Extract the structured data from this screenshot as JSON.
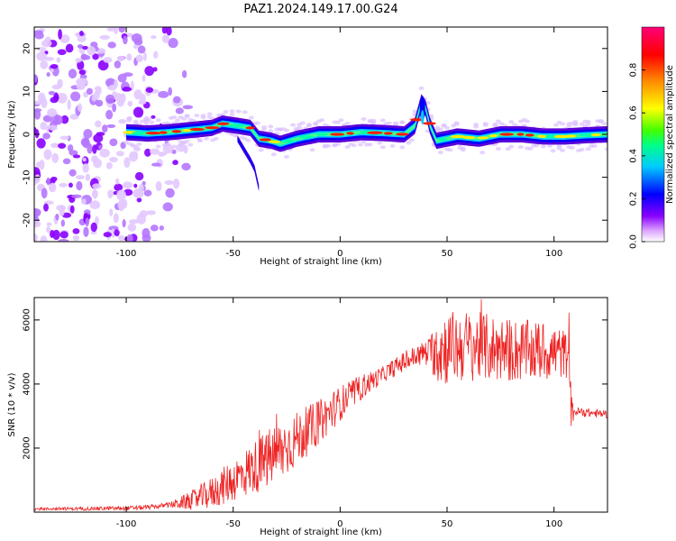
{
  "title": "PAZ1.2024.149.17.00.G24",
  "colors": {
    "snr_line": "#ee2222",
    "axis": "#000000",
    "colormap": [
      "#ffffff",
      "#cc88ff",
      "#8800ff",
      "#0000ff",
      "#00ccff",
      "#00ff88",
      "#44ff00",
      "#ffff00",
      "#ff8800",
      "#ff0000",
      "#ff0077"
    ]
  },
  "chart_data": [
    {
      "type": "heatmap",
      "name": "spectrogram",
      "xlabel": "Height of straight line (km)",
      "ylabel": "Frequency (Hz)",
      "xlim": [
        -143,
        125
      ],
      "ylim": [
        -25,
        25
      ],
      "x_ticks": [
        -100,
        -50,
        0,
        50,
        100
      ],
      "y_ticks": [
        -20,
        -10,
        0,
        10,
        20
      ],
      "colorbar": {
        "label": "Normalized spectral amplitude",
        "range": [
          0,
          1
        ],
        "ticks": [
          "0.0",
          "0.2",
          "0.4",
          "0.6",
          "0.8"
        ]
      },
      "ridge": [
        {
          "x": -100,
          "y": 0.5
        },
        {
          "x": -90,
          "y": 0.2
        },
        {
          "x": -80,
          "y": 0.5
        },
        {
          "x": -70,
          "y": 1.0
        },
        {
          "x": -60,
          "y": 1.5
        },
        {
          "x": -55,
          "y": 2.5
        },
        {
          "x": -48,
          "y": 2.0
        },
        {
          "x": -42,
          "y": 1.5
        },
        {
          "x": -38,
          "y": -1.0
        },
        {
          "x": -32,
          "y": -1.5
        },
        {
          "x": -28,
          "y": -2.2
        },
        {
          "x": -20,
          "y": -1.0
        },
        {
          "x": -10,
          "y": 0.0
        },
        {
          "x": 0,
          "y": 0.0
        },
        {
          "x": 10,
          "y": 0.5
        },
        {
          "x": 20,
          "y": 0.3
        },
        {
          "x": 30,
          "y": 0.0
        },
        {
          "x": 35,
          "y": 2.0
        },
        {
          "x": 38,
          "y": 7.5
        },
        {
          "x": 40,
          "y": 6.0
        },
        {
          "x": 42,
          "y": 2.0
        },
        {
          "x": 45,
          "y": -1.5
        },
        {
          "x": 55,
          "y": -0.5
        },
        {
          "x": 65,
          "y": -1.0
        },
        {
          "x": 75,
          "y": 0.0
        },
        {
          "x": 85,
          "y": 0.0
        },
        {
          "x": 95,
          "y": -0.5
        },
        {
          "x": 105,
          "y": -0.5
        },
        {
          "x": 115,
          "y": -0.2
        },
        {
          "x": 125,
          "y": 0.0
        }
      ],
      "branch": [
        {
          "x": -48,
          "y": -1.0
        },
        {
          "x": -45,
          "y": -3.5
        },
        {
          "x": -42,
          "y": -6.0
        },
        {
          "x": -40,
          "y": -8.0
        },
        {
          "x": -38,
          "y": -12.5
        }
      ]
    },
    {
      "type": "line",
      "name": "snr",
      "xlabel": "Height of straight line (km)",
      "ylabel": "SNR (10 * v/v)",
      "xlim": [
        -143,
        125
      ],
      "ylim": [
        0,
        6700
      ],
      "x_ticks": [
        -100,
        -50,
        0,
        50,
        100
      ],
      "y_ticks": [
        2000,
        4000,
        6000
      ],
      "envelope_points": [
        {
          "x": -143,
          "y": 100
        },
        {
          "x": -120,
          "y": 110
        },
        {
          "x": -100,
          "y": 120
        },
        {
          "x": -90,
          "y": 150
        },
        {
          "x": -80,
          "y": 220
        },
        {
          "x": -70,
          "y": 350
        },
        {
          "x": -60,
          "y": 600
        },
        {
          "x": -50,
          "y": 1000
        },
        {
          "x": -40,
          "y": 1400
        },
        {
          "x": -30,
          "y": 1800
        },
        {
          "x": -20,
          "y": 2300
        },
        {
          "x": -10,
          "y": 2800
        },
        {
          "x": 0,
          "y": 3400
        },
        {
          "x": 10,
          "y": 3900
        },
        {
          "x": 20,
          "y": 4300
        },
        {
          "x": 30,
          "y": 4700
        },
        {
          "x": 40,
          "y": 5000
        },
        {
          "x": 45,
          "y": 5100
        },
        {
          "x": 60,
          "y": 5200
        },
        {
          "x": 80,
          "y": 5050
        },
        {
          "x": 100,
          "y": 5000
        },
        {
          "x": 107,
          "y": 4900
        },
        {
          "x": 108,
          "y": 3150
        },
        {
          "x": 125,
          "y": 3050
        }
      ],
      "noise_amplitude": [
        {
          "x": -143,
          "y": 40
        },
        {
          "x": -80,
          "y": 80
        },
        {
          "x": -60,
          "y": 500
        },
        {
          "x": -30,
          "y": 1000
        },
        {
          "x": -10,
          "y": 700
        },
        {
          "x": 20,
          "y": 250
        },
        {
          "x": 42,
          "y": 400
        },
        {
          "x": 45,
          "y": 1200
        },
        {
          "x": 100,
          "y": 900
        },
        {
          "x": 107,
          "y": 700
        },
        {
          "x": 110,
          "y": 150
        },
        {
          "x": 125,
          "y": 120
        }
      ]
    }
  ]
}
